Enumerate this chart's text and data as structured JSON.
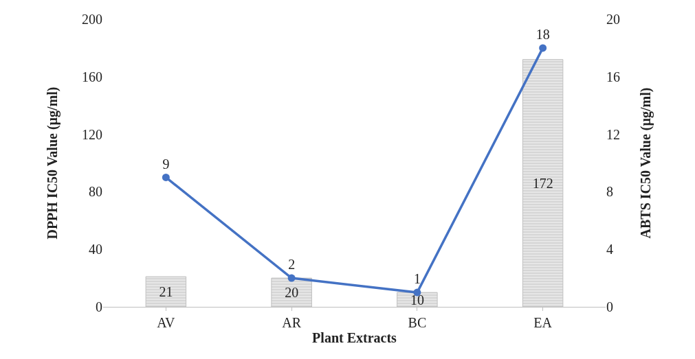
{
  "chart_data": {
    "type": "bar",
    "xlabel": "Plant Extracts",
    "ylabel": "DPPH IC50 Value (µg/ml)",
    "y2label": "ABTS IC50 Value (µg/ml)",
    "categories": [
      "AV",
      "AR",
      "BC",
      "EA"
    ],
    "series": [
      {
        "color": "#bfbfbf",
        "values": [
          21,
          20,
          10,
          172
        ]
      },
      {
        "type": "line",
        "axis": "y2",
        "color": "#4472c4",
        "marker": "circle",
        "values": [
          9,
          2,
          1,
          18
        ]
      }
    ],
    "ylim": [
      0,
      200
    ],
    "yticks": [
      0,
      40,
      80,
      120,
      160,
      200
    ],
    "y2lim": [
      0,
      20
    ],
    "y2ticks": [
      0,
      4,
      8,
      12,
      16,
      20
    ],
    "legend": false,
    "data_labels": true
  }
}
